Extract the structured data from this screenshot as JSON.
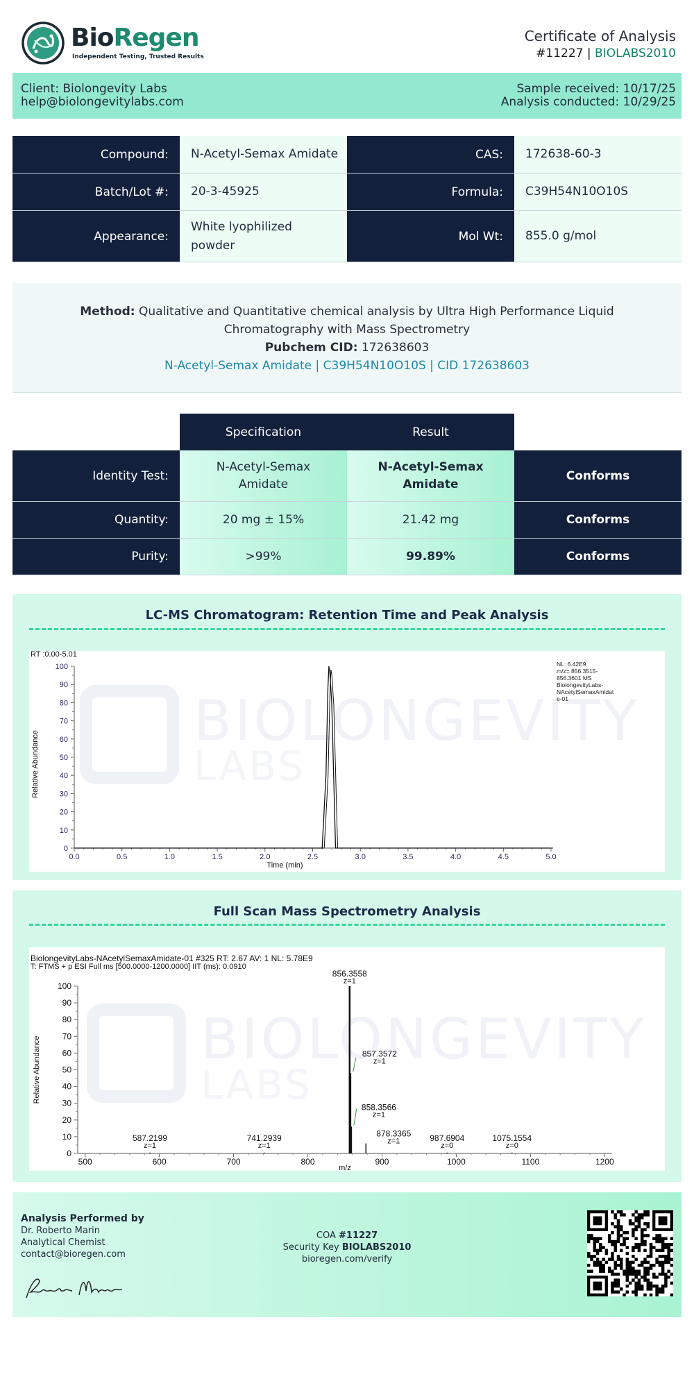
{
  "header": {
    "brand_part1": "Bio",
    "brand_part2": "Regen",
    "tagline": "Independent Testing, Trusted Results",
    "title": "Certificate of Analysis",
    "cert_number": "#11227",
    "separator": "|",
    "security_key": "BIOLABS2010"
  },
  "client": {
    "name": "Client: Biolongevity Labs",
    "email": "help@biolongevitylabs.com",
    "received": "Sample received: 10/17/25",
    "conducted": "Analysis conducted: 10/29/25"
  },
  "info": {
    "compound_label": "Compound:",
    "compound_value": "N-Acetyl-Semax Amidate",
    "cas_label": "CAS:",
    "cas_value": "172638-60-3",
    "batch_label": "Batch/Lot #:",
    "batch_value": "20-3-45925",
    "formula_label": "Formula:",
    "formula_value": "C39H54N10O10S",
    "appearance_label": "Appearance:",
    "appearance_value": "White lyophilized powder",
    "molwt_label": "Mol Wt:",
    "molwt_value": "855.0 g/mol"
  },
  "method": {
    "label": "Method:",
    "text": "Qualitative and Quantitative chemical analysis by Ultra High Performance Liquid Chromatography with Mass Spectrometry",
    "pubchem_label": "Pubchem CID:",
    "pubchem_value": "172638603",
    "link_text": "N-Acetyl-Semax Amidate | C39H54N10O10S | CID 172638603"
  },
  "results": {
    "spec_header": "Specification",
    "result_header": "Result",
    "rows": [
      {
        "label": "Identity Test:",
        "spec": "N-Acetyl-Semax Amidate",
        "result": "N-Acetyl-Semax Amidate",
        "status": "Conforms"
      },
      {
        "label": "Quantity:",
        "spec": "20 mg ± 15%",
        "result": "21.42 mg",
        "status": "Conforms"
      },
      {
        "label": "Purity:",
        "spec": ">99%",
        "result": "99.89%",
        "status": "Conforms"
      }
    ]
  },
  "chart_data": [
    {
      "type": "line",
      "title": "LC-MS Chromatogram: Retention Time and Peak Analysis",
      "header_text": "RT :0.00-5.01",
      "xlabel": "Time (min)",
      "ylabel": "Relative Abundance",
      "xlim": [
        0,
        5.0
      ],
      "ylim": [
        0,
        100
      ],
      "x_ticks": [
        "0.0",
        "0.5",
        "1.0",
        "1.5",
        "2.0",
        "2.5",
        "3.0",
        "3.5",
        "4.0",
        "4.5",
        "5.0"
      ],
      "y_ticks": [
        "0",
        "10",
        "20",
        "30",
        "40",
        "50",
        "60",
        "70",
        "80",
        "90",
        "100"
      ],
      "watermark_line1": "BIOLONGEVITY",
      "watermark_line2": "LABS",
      "annotation_lines": [
        "NL: 6.42E9",
        "m/z= 856.3515-",
        "856.3601 MS",
        "BiolongevityLabs-",
        "NAcetylSemaxAmidat",
        "e-01"
      ],
      "series": [
        {
          "x": [
            0.0,
            2.6,
            2.64,
            2.66,
            2.67,
            2.68,
            2.7,
            2.74,
            5.0
          ],
          "y": [
            0,
            0,
            40,
            88,
            100,
            97,
            80,
            0,
            0
          ]
        }
      ],
      "grid": false
    },
    {
      "type": "bar",
      "title": "Full Scan Mass Spectrometry Analysis",
      "header_line1": "BiolongevityLabs-NAcetylSemaxAmidate-01 #325 RT: 2.67 AV: 1 NL: 5.78E9",
      "header_line2": "T: FTMS + p ESI Full ms [500.0000-1200.0000] IIT (ms): 0.0910",
      "xlabel": "m/z",
      "ylabel": "Relative Abundance",
      "xlim": [
        490,
        1210
      ],
      "ylim": [
        0,
        100
      ],
      "x_ticks": [
        "500",
        "600",
        "700",
        "800",
        "900",
        "1000",
        "1100",
        "1200"
      ],
      "y_ticks": [
        "0",
        "10",
        "20",
        "30",
        "40",
        "50",
        "60",
        "70",
        "80",
        "90",
        "100"
      ],
      "watermark_line1": "BIOLONGEVITY",
      "watermark_line2": "LABS",
      "peaks": [
        {
          "mz": 856.3558,
          "y": 100,
          "label": "856.3558",
          "z": "z=1"
        },
        {
          "mz": 857.3572,
          "y": 48,
          "label": "857.3572",
          "z": "z=1"
        },
        {
          "mz": 858.3566,
          "y": 16,
          "label": "858.3566",
          "z": "z=1"
        },
        {
          "mz": 878.3365,
          "y": 6,
          "label": "878.3365",
          "z": "z=1"
        },
        {
          "mz": 587.2199,
          "y": 0.5,
          "label": "587.2199",
          "z": "z=1"
        },
        {
          "mz": 741.2939,
          "y": 0.5,
          "label": "741.2939",
          "z": "z=1"
        },
        {
          "mz": 987.6904,
          "y": 0.5,
          "label": "987.6904",
          "z": "z=0"
        },
        {
          "mz": 1075.1554,
          "y": 0.5,
          "label": "1075.1554",
          "z": "z=0"
        }
      ],
      "grid": false
    }
  ],
  "footer": {
    "performed_by": "Analysis Performed by",
    "analyst_name": "Dr. Roberto Marin",
    "analyst_role": "Analytical Chemist",
    "analyst_email": "contact@bioregen.com",
    "signature_text": "Roberto Marin",
    "coa_prefix": "COA",
    "coa_number": "#11227",
    "security_prefix": "Security Key",
    "security_key": "BIOLABS2010",
    "verify_url": "bioregen.com/verify"
  },
  "colors": {
    "navy": "#13203b",
    "mint_band": "#93e9cf",
    "panel_bg": "#d4f8ea",
    "brand_green": "#1e8a70",
    "accent_dash": "#34d69c"
  }
}
